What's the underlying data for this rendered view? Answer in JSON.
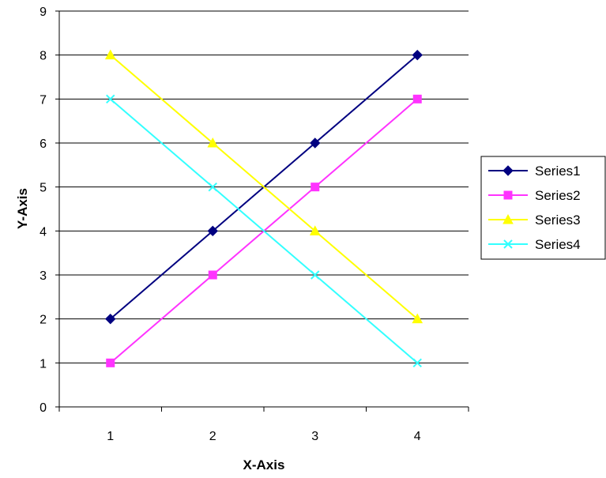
{
  "chart_data": {
    "type": "line",
    "title": "",
    "xlabel": "X-Axis",
    "ylabel": "Y-Axis",
    "x": [
      1,
      2,
      3,
      4
    ],
    "x_tick_labels": [
      "1",
      "2",
      "3",
      "4"
    ],
    "ylim": [
      0,
      9
    ],
    "y_ticks": [
      0,
      1,
      2,
      3,
      4,
      5,
      6,
      7,
      8,
      9
    ],
    "y_tick_labels": [
      "0",
      "1",
      "2",
      "3",
      "4",
      "5",
      "6",
      "7",
      "8",
      "9"
    ],
    "grid": "horizontal",
    "legend_position": "right",
    "series": [
      {
        "name": "Series1",
        "values": [
          2,
          4,
          6,
          8
        ],
        "color": "#000080",
        "marker": "diamond"
      },
      {
        "name": "Series2",
        "values": [
          1,
          3,
          5,
          7
        ],
        "color": "#FF33FF",
        "marker": "square"
      },
      {
        "name": "Series3",
        "values": [
          8,
          6,
          4,
          2
        ],
        "color": "#FFFF00",
        "marker": "triangle"
      },
      {
        "name": "Series4",
        "values": [
          7,
          5,
          3,
          1
        ],
        "color": "#33FFFF",
        "marker": "x"
      }
    ]
  }
}
